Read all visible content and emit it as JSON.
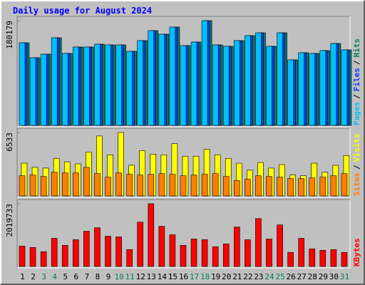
{
  "title": "Daily usage for August 2024",
  "separator": "/",
  "chart_data": [
    {
      "type": "bar",
      "ylim": [
        0,
        180179
      ],
      "yticks": [
        180179
      ],
      "series": [
        {
          "name": "Pages",
          "color": "#00c0ff",
          "values": [
            142183,
            116440,
            122570,
            150760,
            123800,
            134830,
            134830,
            139730,
            138500,
            138500,
            127470,
            145860,
            163020,
            156890,
            169150,
            137280,
            143410,
            180179,
            138500,
            136050,
            145860,
            154440,
            159340,
            136050,
            159340,
            112770,
            125020,
            123800,
            128700,
            140960,
            129930
          ]
        },
        {
          "name": "Files",
          "color": "#0040ff",
          "values": [
            142183,
            116440,
            122570,
            150760,
            123800,
            134830,
            134830,
            139730,
            138500,
            138500,
            127470,
            145860,
            163020,
            156890,
            169150,
            137280,
            143410,
            180179,
            138500,
            136050,
            145860,
            154440,
            159340,
            136050,
            159340,
            112770,
            125020,
            123800,
            128700,
            140960,
            129930
          ]
        },
        {
          "name": "Hits",
          "color": "#00805c",
          "values": [
            142183,
            116440,
            122570,
            150760,
            123800,
            134830,
            134830,
            139730,
            138500,
            138500,
            127470,
            145860,
            163020,
            156890,
            169150,
            137280,
            143410,
            180179,
            138500,
            136050,
            145860,
            154440,
            159340,
            136050,
            159340,
            112770,
            125020,
            123800,
            128700,
            140960,
            129930
          ]
        }
      ]
    },
    {
      "type": "bar",
      "ylim": [
        0,
        6533
      ],
      "yticks": [
        6533
      ],
      "series": [
        {
          "name": "Sites",
          "color": "#ff8000",
          "values": [
            2082,
            2154,
            2010,
            2441,
            2369,
            2369,
            2944,
            2298,
            1939,
            2369,
            2226,
            2154,
            2226,
            2298,
            2226,
            2082,
            2154,
            2226,
            2298,
            2010,
            1580,
            1723,
            2082,
            2010,
            1939,
            1795,
            1795,
            1867,
            1939,
            2082,
            2298
          ]
        },
        {
          "name": "Visits",
          "color": "#ffff00",
          "values": [
            3375,
            2944,
            2872,
            3877,
            3518,
            3303,
            4523,
            6175,
            4236,
            6533,
            3159,
            4667,
            4308,
            4236,
            5385,
            4093,
            4093,
            4811,
            4236,
            3877,
            3375,
            2657,
            3446,
            2872,
            3231,
            2154,
            2082,
            3375,
            2441,
            3159,
            4164
          ]
        }
      ]
    },
    {
      "type": "bar",
      "ylim": [
        0,
        2019733
      ],
      "yticks": [
        2019733
      ],
      "categories": [
        "1",
        "2",
        "3",
        "4",
        "5",
        "6",
        "7",
        "8",
        "9",
        "10",
        "11",
        "12",
        "13",
        "14",
        "15",
        "16",
        "17",
        "18",
        "19",
        "20",
        "21",
        "22",
        "23",
        "24",
        "25",
        "26",
        "27",
        "28",
        "29",
        "30",
        "31"
      ],
      "category_colors": [
        "#000000",
        "#000000",
        "#00805c",
        "#00805c",
        "#000000",
        "#000000",
        "#000000",
        "#000000",
        "#000000",
        "#00805c",
        "#00805c",
        "#000000",
        "#000000",
        "#000000",
        "#000000",
        "#000000",
        "#00805c",
        "#00805c",
        "#000000",
        "#000000",
        "#000000",
        "#000000",
        "#000000",
        "#00805c",
        "#00805c",
        "#000000",
        "#000000",
        "#000000",
        "#000000",
        "#000000",
        "#00805c"
      ],
      "series": [
        {
          "name": "KBytes",
          "color": "#ff0000",
          "values": [
            658100,
            612700,
            476600,
            907800,
            680800,
            862400,
            1134700,
            1248200,
            975800,
            953100,
            544700,
            1429700,
            2019733,
            1293600,
            1021200,
            680800,
            885100,
            862400,
            635400,
            726200,
            1270900,
            862400,
            1543200,
            885100,
            1339000,
            453900,
            907800,
            567400,
            521960,
            544700,
            453900
          ]
        }
      ]
    }
  ]
}
